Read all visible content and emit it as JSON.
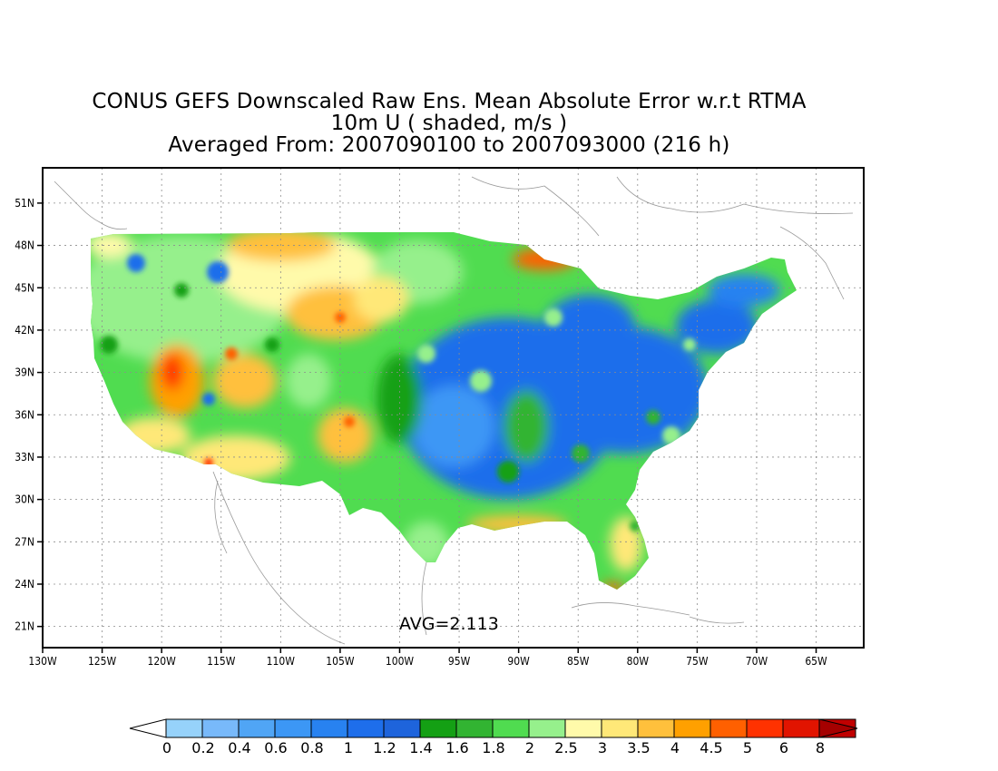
{
  "title": {
    "line1": "CONUS GEFS Downscaled Raw Ens. Mean Absolute Error w.r.t RTMA",
    "line2": "10m U ( shaded, m/s )",
    "line3": "Averaged From: 2007090100 to 2007093000 (216 h)"
  },
  "map": {
    "lon_labels": [
      "130W",
      "125W",
      "120W",
      "115W",
      "110W",
      "105W",
      "100W",
      "95W",
      "90W",
      "85W",
      "80W",
      "75W",
      "70W",
      "65W"
    ],
    "lat_labels": [
      "21N",
      "24N",
      "27N",
      "30N",
      "33N",
      "36N",
      "39N",
      "42N",
      "45N",
      "48N",
      "51N"
    ],
    "lon_range": [
      -130,
      -61
    ],
    "lat_range": [
      19.5,
      53.5
    ],
    "grid": true,
    "annotation": "AVG=2.113"
  },
  "colorbar": {
    "labels": [
      "0",
      "0.2",
      "0.4",
      "0.6",
      "0.8",
      "1",
      "1.2",
      "1.4",
      "1.6",
      "1.8",
      "2",
      "2.5",
      "3",
      "3.5",
      "4",
      "4.5",
      "5",
      "6",
      "8"
    ],
    "colors": [
      "#96d2fa",
      "#78b9fa",
      "#50a5f5",
      "#3c97f5",
      "#2882f0",
      "#1e6eeb",
      "#1e64dc",
      "#14a014",
      "#32b432",
      "#50dc50",
      "#96f08c",
      "#fffaaa",
      "#ffe878",
      "#ffc03c",
      "#ffa000",
      "#ff6000",
      "#ff3200",
      "#e11400",
      "#c00000"
    ],
    "under_color": "#ffffff",
    "over_color": "#a50000"
  }
}
